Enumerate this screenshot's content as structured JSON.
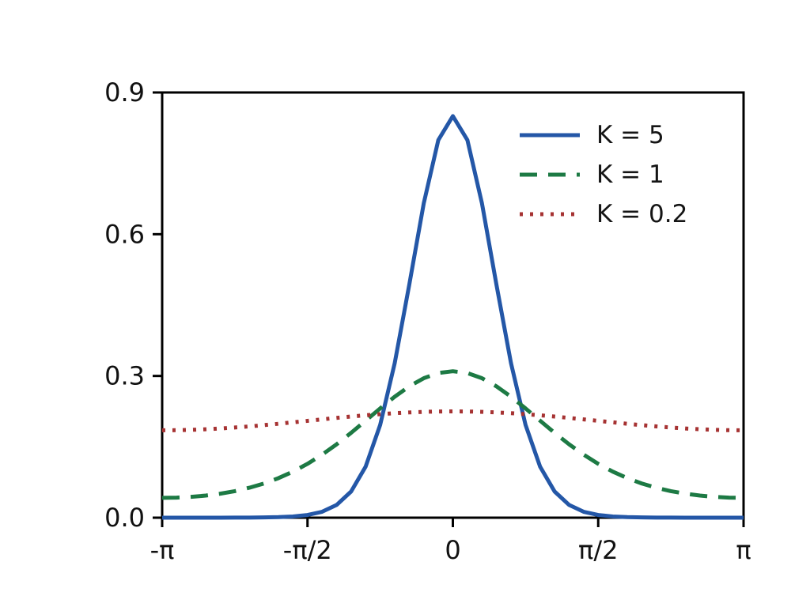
{
  "figure": {
    "background": "#ffffff",
    "axis_color": "#000000",
    "text_color": "#111111"
  },
  "chart_data": {
    "type": "line",
    "title": "",
    "xlabel": "",
    "ylabel": "",
    "x_unit": "radians, expressed in multiples of pi",
    "xlim_pi": [
      -1,
      1
    ],
    "ylim": [
      0,
      0.9
    ],
    "grid": false,
    "legend_position": "top-right",
    "axis_color": "#000000",
    "xticks": [
      {
        "pos": -1,
        "label": "-π"
      },
      {
        "pos": -0.5,
        "label": "-π/2"
      },
      {
        "pos": 0,
        "label": "0"
      },
      {
        "pos": 0.5,
        "label": "π/2"
      },
      {
        "pos": 1,
        "label": "π"
      }
    ],
    "yticks": [
      {
        "pos": 0.0,
        "label": "0.0"
      },
      {
        "pos": 0.3,
        "label": "0.3"
      },
      {
        "pos": 0.6,
        "label": "0.6"
      },
      {
        "pos": 0.9,
        "label": "0.9"
      }
    ],
    "x": [
      -1,
      -0.95,
      -0.9,
      -0.85,
      -0.8,
      -0.75,
      -0.7,
      -0.65,
      -0.6,
      -0.55,
      -0.5,
      -0.45,
      -0.4,
      -0.35,
      -0.3,
      -0.25,
      -0.2,
      -0.15,
      -0.1,
      -0.05,
      0,
      0.05,
      0.1,
      0.15,
      0.2,
      0.25,
      0.3,
      0.35,
      0.4,
      0.45,
      0.5,
      0.55,
      0.6,
      0.65,
      0.7,
      0.75,
      0.8,
      0.85,
      0.9,
      0.95,
      1
    ],
    "series": [
      {
        "name": "K = 5",
        "style": "solid",
        "color": "#2457a7",
        "values": [
          0.0,
          0.0001,
          0.0001,
          0.0001,
          0.0001,
          0.0002,
          0.0003,
          0.0006,
          0.0012,
          0.0026,
          0.0057,
          0.0125,
          0.0269,
          0.0554,
          0.1082,
          0.1965,
          0.3271,
          0.4929,
          0.6656,
          0.7993,
          0.85,
          0.7993,
          0.6656,
          0.4929,
          0.3271,
          0.1965,
          0.1082,
          0.0554,
          0.0269,
          0.0125,
          0.0057,
          0.0026,
          0.0012,
          0.0006,
          0.0003,
          0.0002,
          0.0001,
          0.0001,
          0.0001,
          0.0001,
          0.0
        ]
      },
      {
        "name": "K = 1",
        "style": "dashed",
        "color": "#1d7a44",
        "values": [
          0.042,
          0.0425,
          0.0441,
          0.0468,
          0.0508,
          0.0562,
          0.0634,
          0.0724,
          0.0837,
          0.0975,
          0.114,
          0.1334,
          0.1553,
          0.1796,
          0.2053,
          0.2313,
          0.2561,
          0.278,
          0.2952,
          0.3062,
          0.31,
          0.3062,
          0.2952,
          0.278,
          0.2561,
          0.2313,
          0.2053,
          0.1796,
          0.1553,
          0.1334,
          0.114,
          0.0975,
          0.0837,
          0.0724,
          0.0634,
          0.0562,
          0.0508,
          0.0468,
          0.0441,
          0.0425,
          0.042
        ]
      },
      {
        "name": "K = 0.2",
        "style": "dotted",
        "color": "#a63232",
        "values": [
          0.185,
          0.1852,
          0.186,
          0.1872,
          0.1888,
          0.1909,
          0.1932,
          0.1959,
          0.1988,
          0.2019,
          0.205,
          0.2081,
          0.2112,
          0.2141,
          0.2168,
          0.2191,
          0.2212,
          0.2228,
          0.224,
          0.2248,
          0.225,
          0.2248,
          0.224,
          0.2228,
          0.2212,
          0.2191,
          0.2168,
          0.2141,
          0.2112,
          0.2081,
          0.205,
          0.2019,
          0.1988,
          0.1959,
          0.1932,
          0.1909,
          0.1888,
          0.1872,
          0.186,
          0.1852,
          0.185
        ]
      }
    ]
  }
}
